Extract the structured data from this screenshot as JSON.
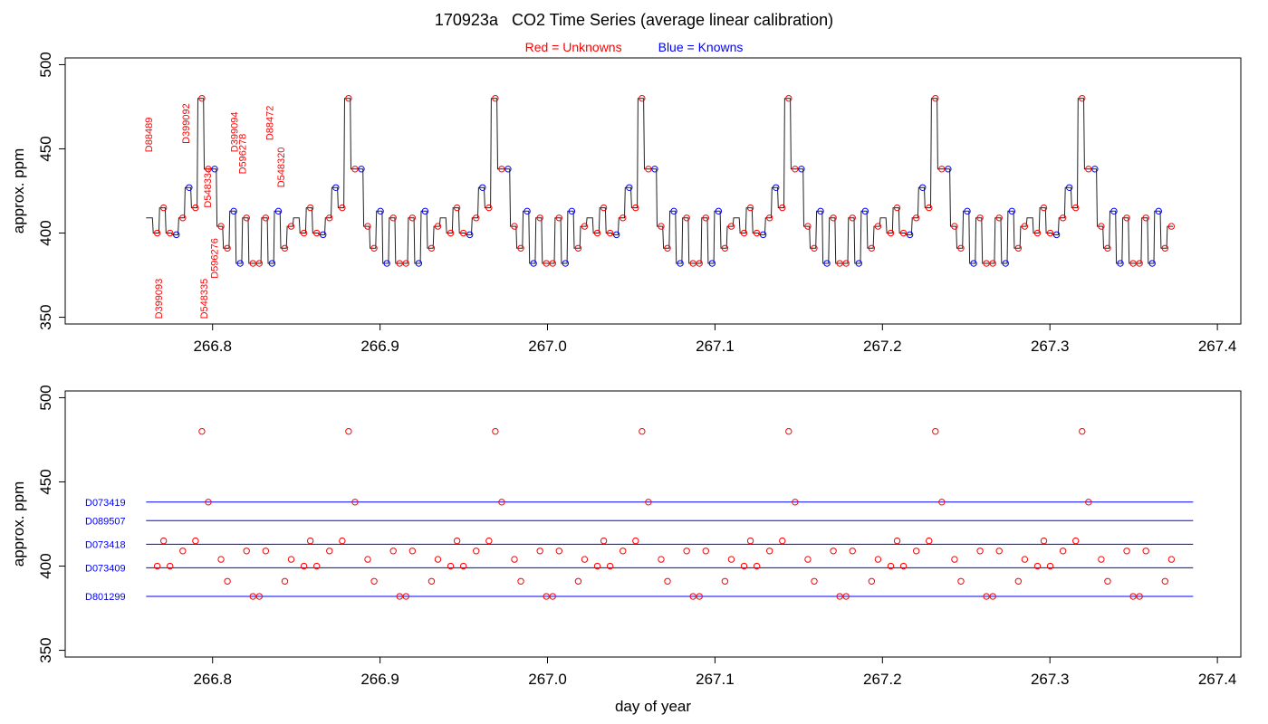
{
  "title": "170923a   CO2 Time Series (average linear calibration)",
  "legend": {
    "unknowns_label": "Red = Unknowns",
    "knowns_label": "Blue = Knowns",
    "unknowns_color": "#ff0000",
    "knowns_color": "#0000ff"
  },
  "chart_data": [
    {
      "type": "line",
      "ylabel": "approx. ppm",
      "xlabel": "",
      "xlim": [
        266.712,
        267.414
      ],
      "ylim": [
        346,
        504
      ],
      "xticks": [
        266.8,
        266.9,
        267.0,
        267.1,
        267.2,
        267.3,
        267.4
      ],
      "xtick_labels": [
        "266.8",
        "266.9",
        "267.0",
        "267.1",
        "267.2",
        "267.3",
        "267.4"
      ],
      "yticks": [
        350,
        400,
        450,
        500
      ],
      "ytick_labels": [
        "350",
        "400",
        "450",
        "500"
      ],
      "cycle_start": 266.7603,
      "cycle_period": 0.0876,
      "cycle_count": 7,
      "cycle_end": 267.3855,
      "cycle_sequence": [
        {
          "y": 409,
          "kind": "trace"
        },
        {
          "y": 400,
          "kind": "unknown"
        },
        {
          "y": 415,
          "kind": "unknown"
        },
        {
          "y": 400,
          "kind": "unknown"
        },
        {
          "y": 399,
          "kind": "known"
        },
        {
          "y": 409,
          "kind": "unknown"
        },
        {
          "y": 427,
          "kind": "known"
        },
        {
          "y": 415,
          "kind": "unknown"
        },
        {
          "y": 480,
          "kind": "unknown"
        },
        {
          "y": 438,
          "kind": "unknown"
        },
        {
          "y": 438,
          "kind": "known"
        },
        {
          "y": 404,
          "kind": "unknown"
        },
        {
          "y": 391,
          "kind": "unknown"
        },
        {
          "y": 413,
          "kind": "known"
        },
        {
          "y": 382,
          "kind": "known"
        },
        {
          "y": 409,
          "kind": "unknown"
        },
        {
          "y": 382,
          "kind": "unknown"
        },
        {
          "y": 382,
          "kind": "unknown"
        },
        {
          "y": 409,
          "kind": "unknown"
        },
        {
          "y": 382,
          "kind": "known"
        },
        {
          "y": 413,
          "kind": "known"
        },
        {
          "y": 391,
          "kind": "unknown"
        },
        {
          "y": 404,
          "kind": "unknown"
        }
      ],
      "annotations": [
        {
          "text": "D88489",
          "x": 266.764,
          "y": 448
        },
        {
          "text": "D399092",
          "x": 266.786,
          "y": 453
        },
        {
          "text": "D548334",
          "x": 266.799,
          "y": 415
        },
        {
          "text": "D399094",
          "x": 266.815,
          "y": 448
        },
        {
          "text": "D596278",
          "x": 266.82,
          "y": 435
        },
        {
          "text": "D88472",
          "x": 266.836,
          "y": 455
        },
        {
          "text": "D548320",
          "x": 266.843,
          "y": 427
        },
        {
          "text": "D596276",
          "x": 266.803,
          "y": 373
        },
        {
          "text": "D399093",
          "x": 266.77,
          "y": 349
        },
        {
          "text": "D548335",
          "x": 266.797,
          "y": 349
        }
      ]
    },
    {
      "type": "scatter",
      "ylabel": "approx. ppm",
      "xlabel": "day of year",
      "xlim": [
        266.712,
        267.414
      ],
      "ylim": [
        346,
        504
      ],
      "xticks": [
        266.8,
        266.9,
        267.0,
        267.1,
        267.2,
        267.3,
        267.4
      ],
      "xtick_labels": [
        "266.8",
        "266.9",
        "267.0",
        "267.1",
        "267.2",
        "267.3",
        "267.4"
      ],
      "yticks": [
        350,
        400,
        450,
        500
      ],
      "ytick_labels": [
        "350",
        "400",
        "450",
        "500"
      ],
      "reference_lines": [
        {
          "label": "D073419",
          "y": 438,
          "color": "#0000ff"
        },
        {
          "label": "D089507",
          "y": 427,
          "color": "#0000ff"
        },
        {
          "label": "D073418",
          "y": 413,
          "color": "#0000ff"
        },
        {
          "label": "D073409",
          "y": 399,
          "color": "#0000ff"
        },
        {
          "label": "D801299",
          "y": 382,
          "color": "#0000ff"
        }
      ],
      "reference_line_range": [
        266.7603,
        267.3855
      ],
      "points_note": "red unknown points: one per 'unknown' step of each cycle in the upper panel"
    }
  ]
}
